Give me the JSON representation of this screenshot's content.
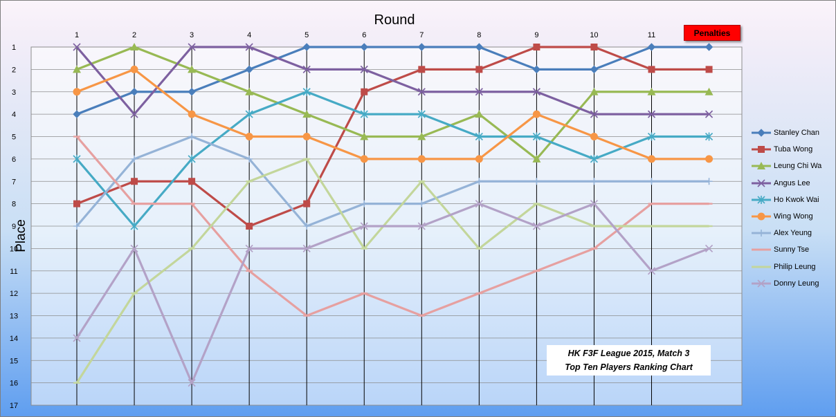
{
  "chart_data": {
    "type": "line",
    "title": "HK F3F League 2015, Match 3",
    "subtitle": "Top Ten Players Ranking Chart",
    "xlabel": "Round",
    "ylabel": "Place",
    "x": [
      "1",
      "2",
      "3",
      "4",
      "5",
      "6",
      "7",
      "8",
      "9",
      "10",
      "11",
      "Penalties"
    ],
    "y_ticks": [
      "1",
      "2",
      "3",
      "4",
      "5",
      "6",
      "7",
      "8",
      "9",
      "10",
      "11",
      "12",
      "13",
      "14",
      "15",
      "16",
      "17"
    ],
    "ylim": [
      1,
      17
    ],
    "y_reversed": true,
    "grid": true,
    "legend_position": "right",
    "penalties_label": "Penalties",
    "series": [
      {
        "name": "Stanley Chan",
        "color": "#4a7ebb",
        "marker": "diamond",
        "values": [
          4,
          3,
          3,
          2,
          1,
          1,
          1,
          1,
          2,
          2,
          1,
          1
        ]
      },
      {
        "name": "Tuba Wong",
        "color": "#be4b48",
        "marker": "square",
        "values": [
          8,
          7,
          7,
          9,
          8,
          3,
          2,
          2,
          1,
          1,
          2,
          2
        ]
      },
      {
        "name": "Leung Chi Wa",
        "color": "#98b954",
        "marker": "triangle",
        "values": [
          2,
          1,
          2,
          3,
          4,
          5,
          5,
          4,
          6,
          3,
          3,
          3
        ]
      },
      {
        "name": "Angus Lee",
        "color": "#7d60a0",
        "marker": "x",
        "values": [
          1,
          4,
          1,
          1,
          2,
          2,
          3,
          3,
          3,
          4,
          4,
          4
        ]
      },
      {
        "name": "Ho Kwok Wai",
        "color": "#46aac5",
        "marker": "star",
        "values": [
          6,
          9,
          6,
          4,
          3,
          4,
          4,
          5,
          5,
          6,
          5,
          5
        ]
      },
      {
        "name": "Wing Wong",
        "color": "#f79646",
        "marker": "circle",
        "values": [
          3,
          2,
          4,
          5,
          5,
          6,
          6,
          6,
          4,
          5,
          6,
          6
        ]
      },
      {
        "name": "Alex Yeung",
        "color": "#95b3d7",
        "marker": "plus",
        "values": [
          9,
          6,
          5,
          6,
          9,
          8,
          8,
          7,
          7,
          7,
          7,
          7
        ]
      },
      {
        "name": "Sunny Tse",
        "color": "#e6a0a0",
        "marker": "dash",
        "values": [
          5,
          8,
          8,
          11,
          13,
          12,
          13,
          12,
          11,
          10,
          8,
          8
        ]
      },
      {
        "name": "Philip Leung",
        "color": "#c3d69b",
        "marker": "dash",
        "values": [
          16,
          12,
          10,
          7,
          6,
          10,
          7,
          10,
          8,
          9,
          9,
          9
        ]
      },
      {
        "name": "Donny Leung",
        "color": "#b3a2c7",
        "marker": "x",
        "values": [
          14,
          10,
          16,
          10,
          10,
          9,
          9,
          8,
          9,
          8,
          11,
          10
        ]
      }
    ]
  }
}
